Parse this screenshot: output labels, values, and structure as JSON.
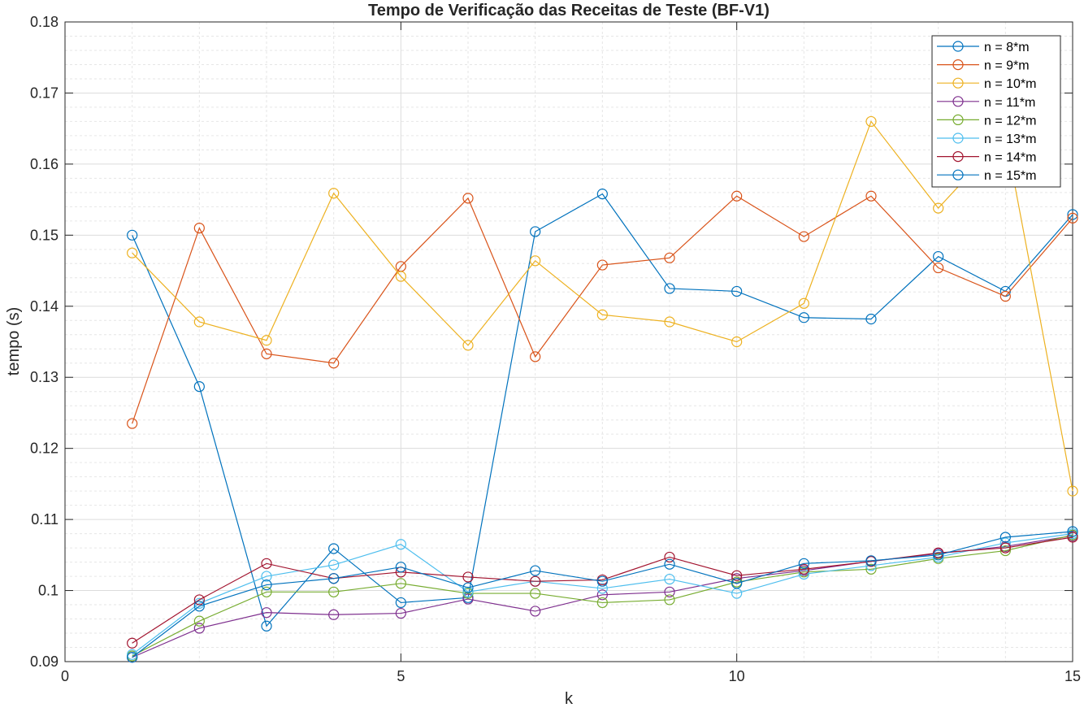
{
  "chart_data": {
    "type": "line",
    "title": "Tempo de Verificação das Receitas de Teste (BF-V1)",
    "xlabel": "k",
    "ylabel": "tempo (s)",
    "xlim": [
      0,
      15
    ],
    "ylim": [
      0.09,
      0.18
    ],
    "x_ticks": [
      "0",
      "5",
      "10",
      "15"
    ],
    "x_tick_values": [
      0,
      5,
      10,
      15
    ],
    "y_ticks": [
      "0.09",
      "0.1",
      "0.11",
      "0.12",
      "0.13",
      "0.14",
      "0.15",
      "0.16",
      "0.17",
      "0.18"
    ],
    "y_tick_values": [
      0.09,
      0.1,
      0.11,
      0.12,
      0.13,
      0.14,
      0.15,
      0.16,
      0.17,
      0.18
    ],
    "grid": true,
    "minor_grid": true,
    "legend_position": "top-right",
    "marker": "open-circle",
    "x": [
      1,
      2,
      3,
      4,
      5,
      6,
      7,
      8,
      9,
      10,
      11,
      12,
      13,
      14,
      15
    ],
    "series": [
      {
        "name": "n = 8*m",
        "color": "#0072BD",
        "values": [
          0.15,
          0.1287,
          0.095,
          0.1059,
          0.0983,
          0.099,
          0.1505,
          0.1558,
          0.1425,
          0.1421,
          0.1384,
          0.1382,
          0.147,
          0.1421,
          0.1529
        ]
      },
      {
        "name": "n = 9*m",
        "color": "#D95319",
        "values": [
          0.1235,
          0.151,
          0.1333,
          0.132,
          0.1456,
          0.1552,
          0.1329,
          0.1458,
          0.1468,
          0.1555,
          0.1498,
          0.1555,
          0.1454,
          0.1414,
          0.1524
        ]
      },
      {
        "name": "n = 10*m",
        "color": "#EDB120",
        "values": [
          0.1475,
          0.1378,
          0.1352,
          0.1559,
          0.1442,
          0.1345,
          0.1464,
          0.1388,
          0.1378,
          0.135,
          0.1404,
          0.166,
          0.1538,
          0.164,
          0.114
        ]
      },
      {
        "name": "n = 11*m",
        "color": "#7E2F8E",
        "values": [
          0.0906,
          0.0947,
          0.0969,
          0.0966,
          0.0968,
          0.0988,
          0.0971,
          0.0994,
          0.0998,
          0.1017,
          0.1028,
          0.1041,
          0.1052,
          0.1062,
          0.1077
        ]
      },
      {
        "name": "n = 12*m",
        "color": "#77AC30",
        "values": [
          0.0908,
          0.0957,
          0.0998,
          0.0998,
          0.101,
          0.0996,
          0.0996,
          0.0983,
          0.0987,
          0.1012,
          0.1026,
          0.103,
          0.1045,
          0.1056,
          0.1078
        ]
      },
      {
        "name": "n = 13*m",
        "color": "#4DBEEE",
        "values": [
          0.091,
          0.0982,
          0.102,
          0.1036,
          0.1065,
          0.0998,
          0.1013,
          0.1003,
          0.1016,
          0.0996,
          0.1023,
          0.1035,
          0.1047,
          0.1067,
          0.108
        ]
      },
      {
        "name": "n = 14*m",
        "color": "#A2142F",
        "values": [
          0.0926,
          0.0987,
          0.1038,
          0.1017,
          0.1026,
          0.1019,
          0.1013,
          0.1015,
          0.1047,
          0.1021,
          0.103,
          0.1041,
          0.1053,
          0.106,
          0.1075
        ]
      },
      {
        "name": "n = 15*m",
        "color": "#0072BD",
        "values": [
          0.0906,
          0.0978,
          0.1008,
          0.1017,
          0.1033,
          0.1004,
          0.1028,
          0.1013,
          0.1037,
          0.101,
          0.1038,
          0.1042,
          0.105,
          0.1075,
          0.1083
        ]
      }
    ]
  }
}
